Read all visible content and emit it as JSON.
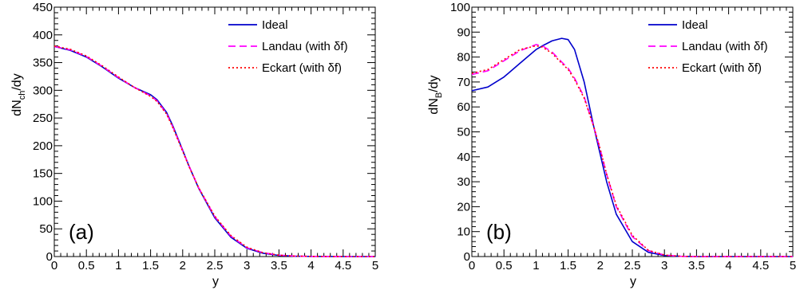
{
  "chart_data": [
    {
      "type": "line",
      "panel_label": "(a)",
      "xlabel": "y",
      "ylabel": "dN",
      "ylabel_sub": "ch",
      "ylabel_suffix": "/dy",
      "xlim": [
        0,
        5
      ],
      "ylim": [
        0,
        450
      ],
      "xticks": [
        0,
        0.5,
        1,
        1.5,
        2,
        2.5,
        3,
        3.5,
        4,
        4.5,
        5
      ],
      "xticklabels": [
        "0",
        "0.5",
        "1",
        "1.5",
        "2",
        "2.5",
        "3",
        "3.5",
        "4",
        "4.5",
        "5"
      ],
      "yticks": [
        0,
        50,
        100,
        150,
        200,
        250,
        300,
        350,
        400,
        450
      ],
      "yticklabels": [
        "0",
        "50",
        "100",
        "150",
        "200",
        "250",
        "300",
        "350",
        "400",
        "450"
      ],
      "grid": false,
      "legend_position": "top-right",
      "x": [
        0,
        0.25,
        0.5,
        0.75,
        1.0,
        1.25,
        1.5,
        1.6,
        1.75,
        1.85,
        2.0,
        2.1,
        2.25,
        2.5,
        2.75,
        3.0,
        3.25,
        3.5,
        3.75,
        4.0,
        4.5,
        5.0
      ],
      "series": [
        {
          "name": "Ideal",
          "color": "#0000cc",
          "dash": "solid",
          "values": [
            379,
            372,
            360,
            342,
            322,
            305,
            292,
            283,
            260,
            235,
            192,
            163,
            123,
            70,
            35,
            15,
            6,
            2,
            0.6,
            0.2,
            0,
            0
          ]
        },
        {
          "name": "Landau (with δf)",
          "color": "#ff00ff",
          "dash": "dashed",
          "values": [
            379,
            373,
            361,
            343,
            323,
            305,
            290,
            281,
            258,
            233,
            191,
            163,
            124,
            72,
            37,
            16,
            7,
            2.5,
            0.8,
            0.3,
            0,
            0
          ]
        },
        {
          "name": "Eckart (with δf)",
          "color": "#ff0000",
          "dash": "dotted",
          "values": [
            380,
            374,
            362,
            344,
            324,
            305,
            289,
            280,
            257,
            232,
            190,
            162,
            124,
            73,
            38,
            17,
            7,
            2.5,
            0.8,
            0.3,
            0,
            0
          ]
        }
      ]
    },
    {
      "type": "line",
      "panel_label": "(b)",
      "xlabel": "y",
      "ylabel": "dN",
      "ylabel_sub": "B",
      "ylabel_suffix": "/dy",
      "xlim": [
        0,
        5
      ],
      "ylim": [
        0,
        100
      ],
      "xticks": [
        0,
        0.5,
        1,
        1.5,
        2,
        2.5,
        3,
        3.5,
        4,
        4.5,
        5
      ],
      "xticklabels": [
        "0",
        "0.5",
        "1",
        "1.5",
        "2",
        "2.5",
        "3",
        "3.5",
        "4",
        "4.5",
        "5"
      ],
      "yticks": [
        0,
        10,
        20,
        30,
        40,
        50,
        60,
        70,
        80,
        90,
        100
      ],
      "yticklabels": [
        "0",
        "10",
        "20",
        "30",
        "40",
        "50",
        "60",
        "70",
        "80",
        "90",
        "100"
      ],
      "grid": false,
      "legend_position": "top-right",
      "x": [
        0,
        0.25,
        0.5,
        0.75,
        1.0,
        1.1,
        1.25,
        1.4,
        1.5,
        1.6,
        1.75,
        1.9,
        2.0,
        2.1,
        2.25,
        2.5,
        2.75,
        3.0,
        3.25,
        3.5,
        4.0,
        4.5,
        5.0
      ],
      "series": [
        {
          "name": "Ideal",
          "color": "#0000cc",
          "dash": "solid",
          "values": [
            66.5,
            68,
            72,
            77.5,
            83,
            84.5,
            86.5,
            87.5,
            87,
            83,
            70,
            52,
            41,
            30,
            17,
            6,
            1.7,
            0.4,
            0.1,
            0,
            0,
            0,
            0
          ]
        },
        {
          "name": "Landau (with δf)",
          "color": "#ff00ff",
          "dash": "dashed",
          "values": [
            73,
            74.5,
            78.5,
            82.5,
            85,
            84.5,
            82,
            78,
            75.5,
            71.5,
            64,
            52,
            43,
            33,
            20,
            8,
            2.4,
            0.6,
            0.1,
            0,
            0,
            0,
            0
          ]
        },
        {
          "name": "Eckart (with δf)",
          "color": "#ff0000",
          "dash": "dotted",
          "values": [
            73.5,
            75,
            79,
            83,
            84.5,
            84,
            81.5,
            77.5,
            75,
            71,
            63.5,
            52,
            43,
            33,
            20.5,
            8.5,
            2.5,
            0.6,
            0.1,
            0,
            0,
            0,
            0
          ]
        }
      ]
    }
  ]
}
